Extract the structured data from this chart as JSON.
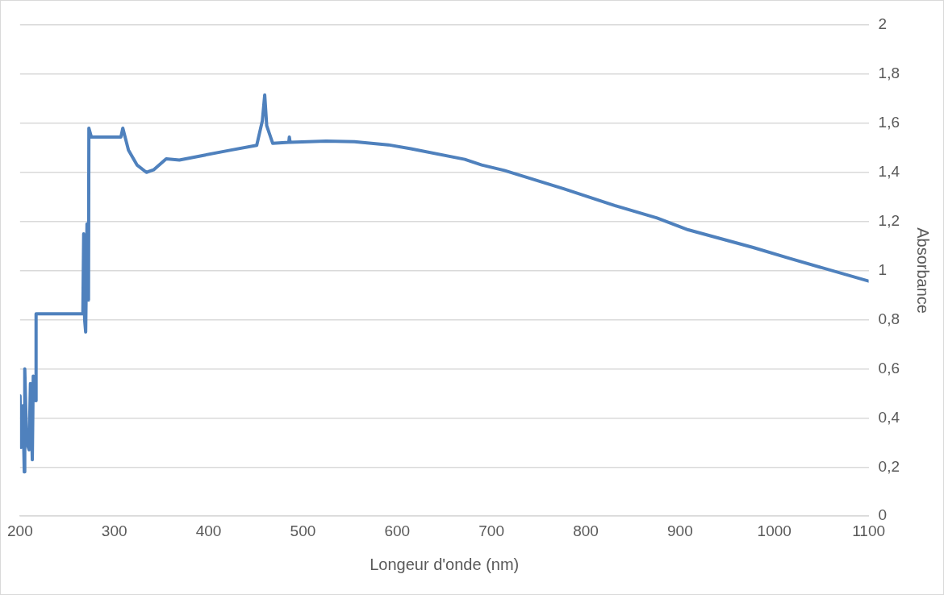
{
  "chart_data": {
    "type": "line",
    "xlabel": "Longeur d'onde (nm)",
    "y2label": "Absorbance",
    "grid": "y",
    "marker": "none",
    "legend": false,
    "xlim": [
      200,
      1100
    ],
    "xticks": [
      200,
      300,
      400,
      500,
      600,
      700,
      800,
      900,
      1000,
      1100
    ],
    "y2lim": [
      0,
      2
    ],
    "y2ticks": [
      0,
      {
        "value": 0.2,
        "label": "0,2"
      },
      {
        "value": 0.4,
        "label": "0,4"
      },
      {
        "value": 0.6,
        "label": "0,6"
      },
      {
        "value": 0.8,
        "label": "0,8"
      },
      1,
      {
        "value": 1.2,
        "label": "1,2"
      },
      {
        "value": 1.4,
        "label": "1,4"
      },
      {
        "value": 1.6,
        "label": "1,6"
      },
      {
        "value": 1.8,
        "label": "1,8"
      },
      2
    ],
    "series": [
      {
        "color": "#4f81bd",
        "axis": "y2",
        "x": [
          200,
          201,
          203,
          204.5,
          205,
          207,
          209.6,
          211,
          213,
          214,
          216.5,
          217,
          266.6,
          267.5,
          268.5,
          269.6,
          271,
          272.6,
          273,
          275.6,
          307,
          309,
          315,
          324,
          334,
          341.6,
          355,
          369,
          395.6,
          422.6,
          451,
          457,
          459.5,
          461.6,
          468,
          485,
          485.6,
          486.5,
          524.6,
          554.6,
          590.6,
          614.6,
          671.6,
          689.6,
          713.6,
          776.6,
          830.6,
          875.6,
          908.6,
          977.6,
          1016.6,
          1100
        ],
        "values": [
          0.49,
          0.28,
          0.45,
          0.18,
          0.6,
          0.3,
          0.27,
          0.54,
          0.23,
          0.57,
          0.47,
          0.824,
          0.824,
          1.15,
          0.8,
          0.75,
          1.19,
          0.88,
          1.58,
          1.544,
          1.544,
          1.58,
          1.49,
          1.43,
          1.4,
          1.41,
          1.455,
          1.45,
          1.47,
          1.49,
          1.51,
          1.61,
          1.715,
          1.59,
          1.518,
          1.522,
          1.544,
          1.522,
          1.527,
          1.525,
          1.512,
          1.496,
          1.453,
          1.43,
          1.408,
          1.333,
          1.265,
          1.214,
          1.166,
          1.094,
          1.049,
          0.957
        ]
      }
    ]
  }
}
